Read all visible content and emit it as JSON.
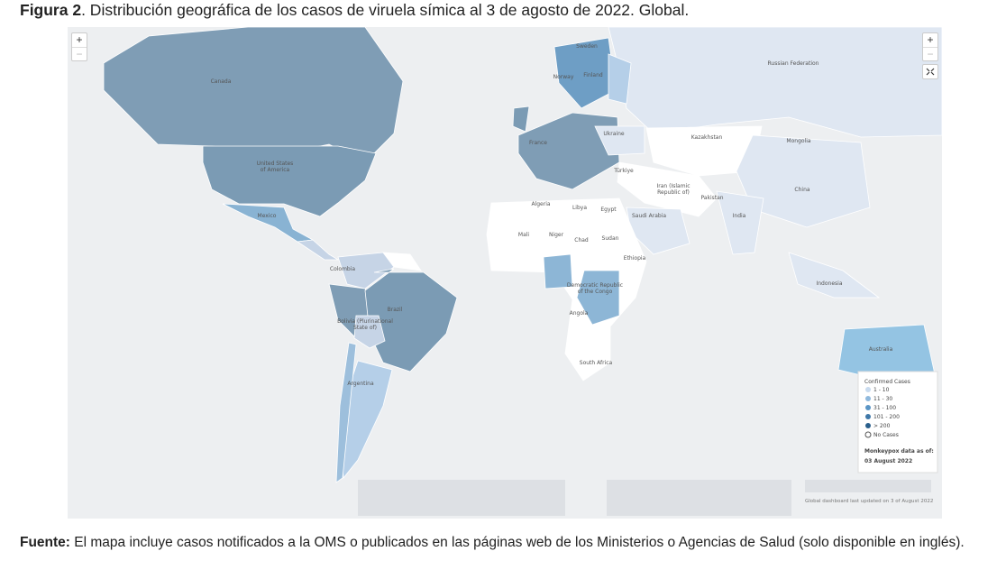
{
  "caption": {
    "label": "Figura 2",
    "text": ". Distribución geográfica de los casos de viruela símica al 3 de agosto de 2022. Global."
  },
  "map": {
    "zoom_in": "+",
    "zoom_out": "−",
    "country_labels": [
      "Canada",
      "Russian Federation",
      "Sweden",
      "Finland",
      "Norway",
      "Ukraine",
      "Kazakhstan",
      "Mongolia",
      "France",
      "United States",
      "of America",
      "Türkiye",
      "Iran (Islamic",
      "Republic of)",
      "Pakistan",
      "China",
      "Algeria",
      "Libya",
      "Egypt",
      "Saudi Arabia",
      "India",
      "Mexico",
      "Mali",
      "Niger",
      "Chad",
      "Sudan",
      "Ethiopia",
      "Colombia",
      "Democratic Republic",
      "of the Congo",
      "Indonesia",
      "Brazil",
      "Angola",
      "Bolivia (Plurinational",
      "State of)",
      "Australia",
      "South Africa",
      "Argentina"
    ],
    "legend": {
      "title": "Confirmed Cases",
      "items": [
        "1 - 10",
        "11 - 30",
        "31 - 100",
        "101 - 200",
        "> 200",
        "No Cases"
      ]
    },
    "data_as_of_label": "Monkeypox data as of:",
    "data_as_of_date": "03 August 2022",
    "updated": "Global dashboard last updated on 3 of August 2022"
  },
  "source": {
    "label": "Fuente:",
    "text": " El mapa incluye casos notificados a la OMS o publicados en las páginas web de los Ministerios o Agencias de Salud (solo disponible en inglés)."
  }
}
